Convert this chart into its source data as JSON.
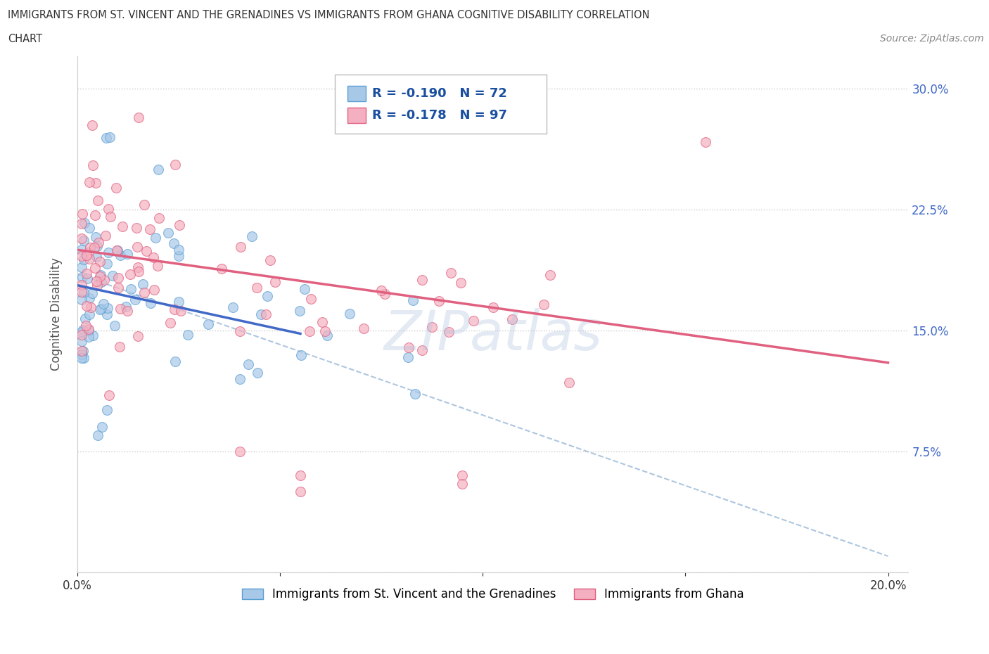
{
  "title_line1": "IMMIGRANTS FROM ST. VINCENT AND THE GRENADINES VS IMMIGRANTS FROM GHANA COGNITIVE DISABILITY CORRELATION",
  "title_line2": "CHART",
  "source": "Source: ZipAtlas.com",
  "ylabel": "Cognitive Disability",
  "xlim": [
    0.0,
    0.205
  ],
  "ylim": [
    0.0,
    0.32
  ],
  "xticks": [
    0.0,
    0.05,
    0.1,
    0.15,
    0.2
  ],
  "xticklabels": [
    "0.0%",
    "",
    "",
    "",
    "20.0%"
  ],
  "yticks": [
    0.0,
    0.075,
    0.15,
    0.225,
    0.3
  ],
  "yticklabels_right": [
    "",
    "7.5%",
    "15.0%",
    "22.5%",
    "30.0%"
  ],
  "R_blue": -0.19,
  "N_blue": 72,
  "R_pink": -0.178,
  "N_pink": 97,
  "color_blue_fill": "#a8c8e8",
  "color_blue_edge": "#5a9fd4",
  "color_pink_fill": "#f4b0c0",
  "color_pink_edge": "#e06080",
  "color_blue_line": "#4169c8",
  "color_pink_line": "#e06080",
  "color_dash_line": "#9ab8d8",
  "watermark": "ZIPatlas",
  "legend_label_blue": "Immigrants from St. Vincent and the Grenadines",
  "legend_label_pink": "Immigrants from Ghana",
  "background_color": "#ffffff",
  "tick_color_right": "#4169c8",
  "tick_color_bottom": "#333333",
  "blue_trend_x0": 0.0,
  "blue_trend_y0": 0.178,
  "blue_trend_x1": 0.055,
  "blue_trend_y1": 0.148,
  "pink_trend_x0": 0.0,
  "pink_trend_y0": 0.2,
  "pink_trend_x1": 0.2,
  "pink_trend_y1": 0.13,
  "dash_trend_x0": 0.0,
  "dash_trend_y0": 0.185,
  "dash_trend_x1": 0.2,
  "dash_trend_y1": 0.01
}
